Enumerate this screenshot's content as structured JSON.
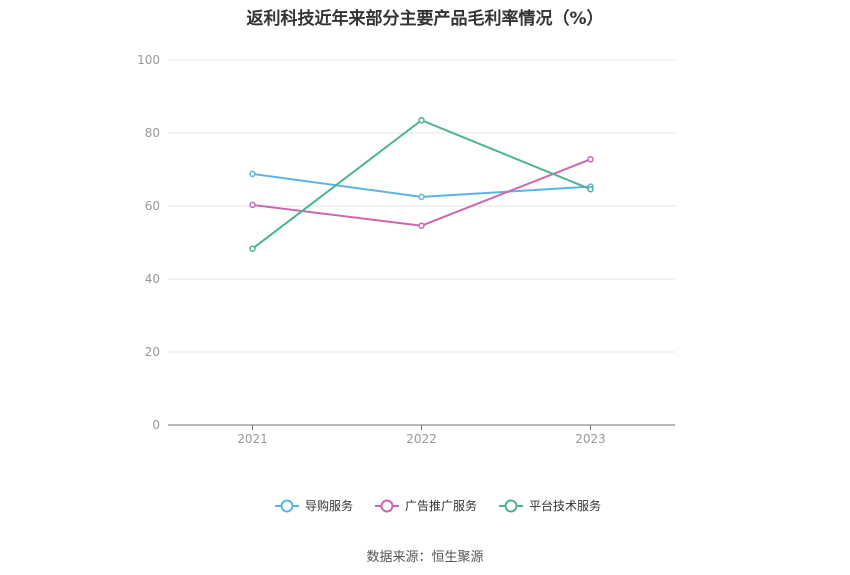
{
  "chart_data": {
    "type": "line",
    "title": "返利科技近年来部分主要产品毛利率情况（%）",
    "categories": [
      "2021",
      "2022",
      "2023"
    ],
    "ylim": [
      0,
      100
    ],
    "yticks": [
      "0",
      "20",
      "40",
      "60",
      "80",
      "100"
    ],
    "grid": true,
    "legend_position": "bottom",
    "series": [
      {
        "name": "导购服务",
        "values": [
          68.8,
          62.5,
          65.3
        ],
        "color": "#5ab4e8"
      },
      {
        "name": "广告推广服务",
        "values": [
          60.3,
          54.6,
          72.8
        ],
        "color": "#d166b0"
      },
      {
        "name": "平台技术服务",
        "values": [
          48.3,
          83.5,
          64.6
        ],
        "color": "#4db393"
      }
    ]
  },
  "source": "数据来源：恒生聚源"
}
